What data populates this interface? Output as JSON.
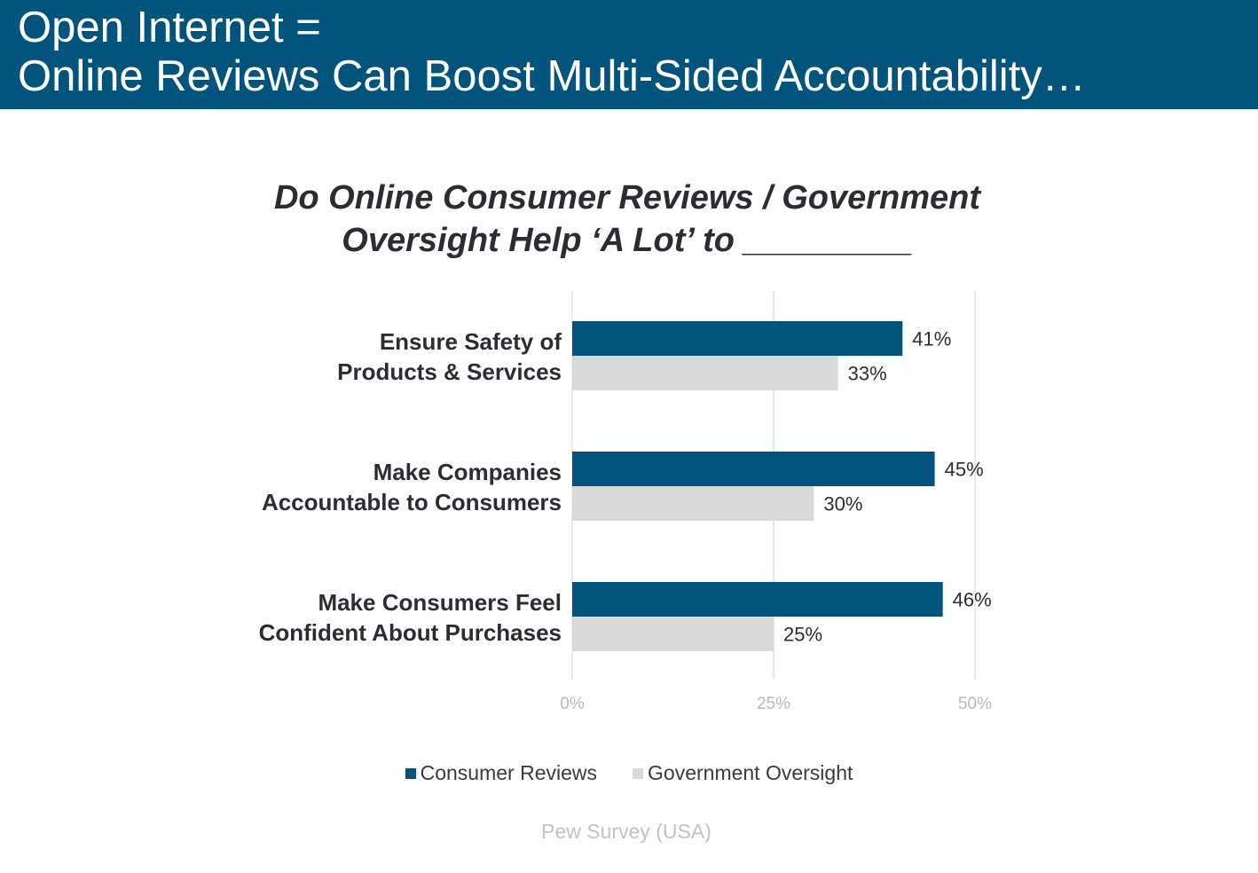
{
  "header": {
    "line1": "Open Internet =",
    "line2": "Online Reviews Can Boost Multi-Sided Accountability…"
  },
  "colors": {
    "header_bg": "#02547d",
    "consumer_reviews": "#02547d",
    "government_oversight": "#d9d9d9"
  },
  "chart_data": {
    "type": "bar",
    "orientation": "horizontal",
    "title_line1": "Do Online Consumer Reviews / Government",
    "title_line2": "Oversight Help ‘A Lot’ to _________",
    "categories": [
      [
        "Ensure Safety of",
        "Products & Services"
      ],
      [
        "Make Companies",
        "Accountable to Consumers"
      ],
      [
        "Make Consumers Feel",
        "Confident About Purchases"
      ]
    ],
    "series": [
      {
        "name": "Consumer Reviews",
        "values": [
          41,
          45,
          46
        ],
        "labels": [
          "41%",
          "45%",
          "46%"
        ]
      },
      {
        "name": "Government Oversight",
        "values": [
          33,
          30,
          25
        ],
        "labels": [
          "33%",
          "30%",
          "25%"
        ]
      }
    ],
    "xlim": [
      0,
      50
    ],
    "ticks": [
      0,
      25,
      50
    ],
    "tick_labels": [
      "0%",
      "25%",
      "50%"
    ],
    "grid": true,
    "legend_position": "bottom"
  },
  "footer": {
    "source": "Pew Survey (USA)"
  }
}
